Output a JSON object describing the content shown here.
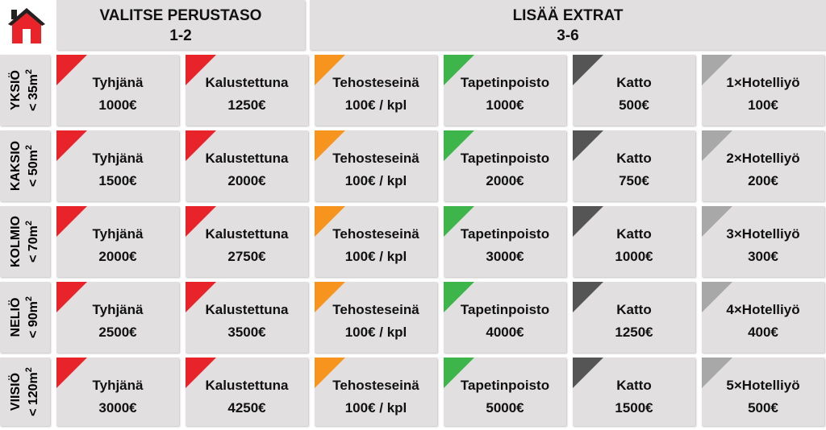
{
  "header": {
    "groups": [
      {
        "title": "VALITSE PERUSTASO",
        "range": "1-2"
      },
      {
        "title": "LISÄÄ EXTRAT",
        "range": "3-6"
      }
    ]
  },
  "rows": [
    {
      "label": "YKSIÖ",
      "size": "< 35m",
      "sup": "2",
      "cells": [
        {
          "name": "Tyhjänä",
          "price": "1000€"
        },
        {
          "name": "Kalustettuna",
          "price": "1250€"
        },
        {
          "name": "Tehosteseinä",
          "price": "100€ / kpl"
        },
        {
          "name": "Tapetinpoisto",
          "price": "1000€"
        },
        {
          "name": "Katto",
          "price": "500€"
        },
        {
          "name": "1×Hotelliyö",
          "price": "100€"
        }
      ]
    },
    {
      "label": "KAKSIO",
      "size": "< 50m",
      "sup": "2",
      "cells": [
        {
          "name": "Tyhjänä",
          "price": "1500€"
        },
        {
          "name": "Kalustettuna",
          "price": "2000€"
        },
        {
          "name": "Tehosteseinä",
          "price": "100€ / kpl"
        },
        {
          "name": "Tapetinpoisto",
          "price": "2000€"
        },
        {
          "name": "Katto",
          "price": "750€"
        },
        {
          "name": "2×Hotelliyö",
          "price": "200€"
        }
      ]
    },
    {
      "label": "KOLMIO",
      "size": "< 70m",
      "sup": "2",
      "cells": [
        {
          "name": "Tyhjänä",
          "price": "2000€"
        },
        {
          "name": "Kalustettuna",
          "price": "2750€"
        },
        {
          "name": "Tehosteseinä",
          "price": "100€ / kpl"
        },
        {
          "name": "Tapetinpoisto",
          "price": "3000€"
        },
        {
          "name": "Katto",
          "price": "1000€"
        },
        {
          "name": "3×Hotelliyö",
          "price": "300€"
        }
      ]
    },
    {
      "label": "NELIÖ",
      "size": "< 90m",
      "sup": "2",
      "cells": [
        {
          "name": "Tyhjänä",
          "price": "2500€"
        },
        {
          "name": "Kalustettuna",
          "price": "3500€"
        },
        {
          "name": "Tehosteseinä",
          "price": "100€ / kpl"
        },
        {
          "name": "Tapetinpoisto",
          "price": "4000€"
        },
        {
          "name": "Katto",
          "price": "1250€"
        },
        {
          "name": "4×Hotelliyö",
          "price": "400€"
        }
      ]
    },
    {
      "label": "VIISIÖ",
      "size": "< 120m",
      "sup": "2",
      "cells": [
        {
          "name": "Tyhjänä",
          "price": "3000€"
        },
        {
          "name": "Kalustettuna",
          "price": "4250€"
        },
        {
          "name": "Tehosteseinä",
          "price": "100€ / kpl"
        },
        {
          "name": "Tapetinpoisto",
          "price": "5000€"
        },
        {
          "name": "Katto",
          "price": "1500€"
        },
        {
          "name": "5×Hotelliyö",
          "price": "500€"
        }
      ]
    }
  ]
}
